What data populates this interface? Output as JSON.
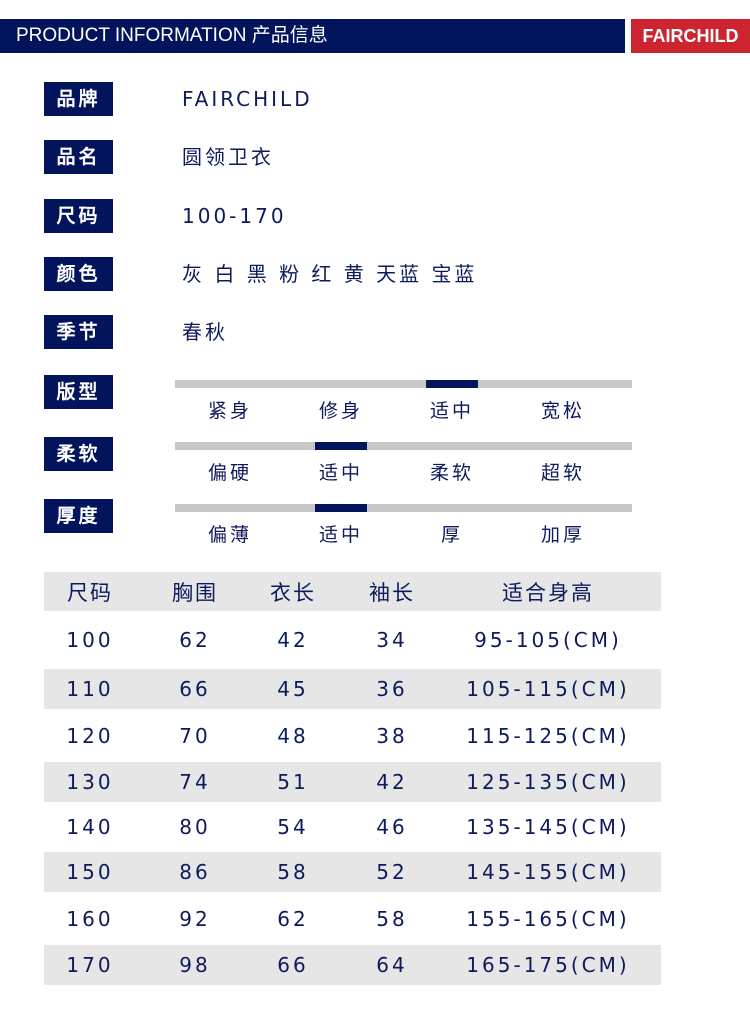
{
  "header": {
    "title": "PRODUCT INFORMATION  产品信息",
    "brand": "FAIRCHILD"
  },
  "info": [
    {
      "label": "品牌",
      "value": "FAIRCHILD"
    },
    {
      "label": "品名",
      "value": "圆领卫衣"
    },
    {
      "label": "尺码",
      "value": "100-170"
    },
    {
      "label": "颜色",
      "value": "灰 白 黑 粉 红 黄 天蓝 宝蓝"
    },
    {
      "label": "季节",
      "value": "春秋"
    }
  ],
  "scales": [
    {
      "label": "版型",
      "options": [
        "紧身",
        "修身",
        "适中",
        "宽松"
      ],
      "selected_index": 2
    },
    {
      "label": "柔软",
      "options": [
        "偏硬",
        "适中",
        "柔软",
        "超软"
      ],
      "selected_index": 1
    },
    {
      "label": "厚度",
      "options": [
        "偏薄",
        "适中",
        "厚",
        "加厚"
      ],
      "selected_index": 1
    }
  ],
  "size_table": {
    "headers": [
      "尺码",
      "胸围",
      "衣长",
      "袖长",
      "适合身高"
    ],
    "rows": [
      [
        "100",
        "62",
        "42",
        "34",
        "95-105(CM)"
      ],
      [
        "110",
        "66",
        "45",
        "36",
        "105-115(CM)"
      ],
      [
        "120",
        "70",
        "48",
        "38",
        "115-125(CM)"
      ],
      [
        "130",
        "74",
        "51",
        "42",
        "125-135(CM)"
      ],
      [
        "140",
        "80",
        "54",
        "46",
        "135-145(CM)"
      ],
      [
        "150",
        "86",
        "58",
        "52",
        "145-155(CM)"
      ],
      [
        "160",
        "92",
        "62",
        "58",
        "155-165(CM)"
      ],
      [
        "170",
        "98",
        "66",
        "64",
        "165-175(CM)"
      ]
    ]
  },
  "colors": {
    "navy": "#02155c",
    "red": "#cc2530",
    "gray_bar": "#c8c8c8",
    "row_shade": "#e6e6e6"
  }
}
